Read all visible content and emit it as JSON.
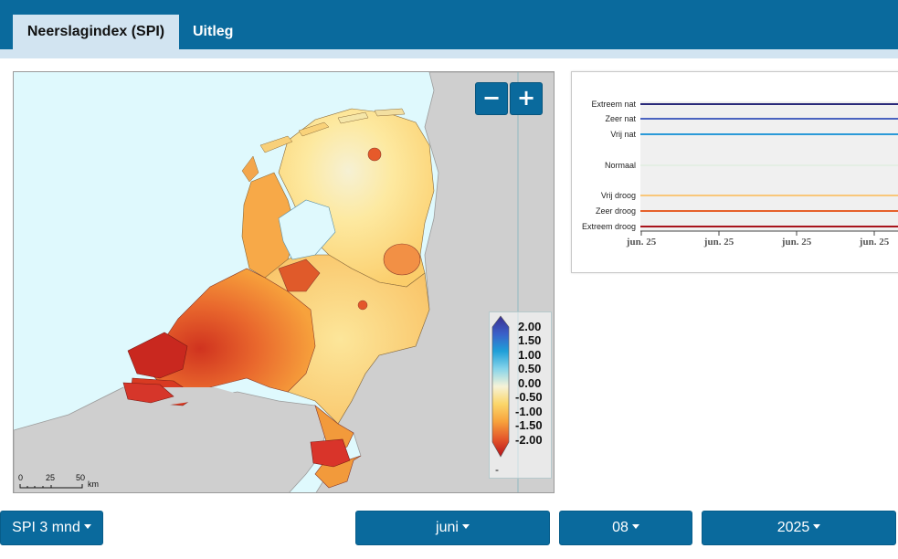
{
  "tabs": [
    {
      "label": "Neerslagindex (SPI)",
      "active": true
    },
    {
      "label": "Uitleg",
      "active": false
    }
  ],
  "map": {
    "zoom_out_label": "−",
    "zoom_in_label": "+",
    "legend": {
      "values": [
        "2.00",
        "1.50",
        "1.00",
        "0.50",
        "0.00",
        "-0.50",
        "-1.00",
        "-1.50",
        "-2.00"
      ],
      "colors": [
        "#3b2f8f",
        "#3b5fc8",
        "#1f9fd8",
        "#86d4ea",
        "#f6f3d8",
        "#fbd66a",
        "#f7a23c",
        "#e4562a",
        "#b5121b"
      ],
      "no_data_label": "-"
    },
    "scale": {
      "labels": [
        "0",
        "25",
        "50"
      ],
      "unit": "km"
    }
  },
  "chart": {
    "categories": [
      "Extreem nat",
      "Zeer nat",
      "Vrij nat",
      "Normaal",
      "Vrij droog",
      "Zeer droog",
      "Extreem droog"
    ],
    "category_colors": [
      "#2a2a7a",
      "#4a63c0",
      "#2b9ad8",
      "#d9ecd9",
      "#f9c77a",
      "#e6612c",
      "#a8141c"
    ],
    "x_ticks": [
      "jun. 25",
      "jun. 25",
      "jun. 25",
      "jun. 25"
    ]
  },
  "controls": {
    "period": "SPI 3 mnd",
    "month": "juni",
    "day": "08",
    "year": "2025"
  }
}
